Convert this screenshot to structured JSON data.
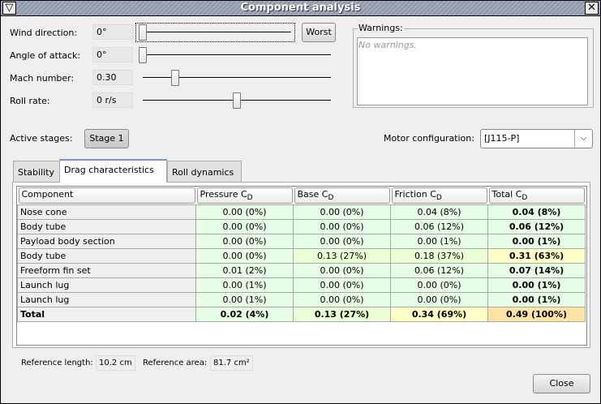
{
  "window": {
    "title": "Component analysis",
    "menu_icon": "triangle-down-icon",
    "close_icon": "close-x-icon"
  },
  "controls": [
    {
      "label": "Wind direction:",
      "value": "0°",
      "slider_fraction": 0.0
    },
    {
      "label": "Angle of attack:",
      "value": "0°",
      "slider_fraction": 0.0
    },
    {
      "label": "Mach number:",
      "value": "0.30",
      "slider_fraction": 0.1
    },
    {
      "label": "Roll rate:",
      "value": "0 r/s",
      "slider_fraction": 0.5
    }
  ],
  "worst_button": "Worst",
  "warnings": {
    "title": "Warnings:",
    "text": "No warnings."
  },
  "stages": {
    "label": "Active stages:",
    "button": "Stage 1"
  },
  "motor": {
    "label": "Motor configuration:",
    "value": "[J115-P]"
  },
  "tabs": [
    {
      "label": "Stability"
    },
    {
      "label": "Drag characteristics",
      "active": true
    },
    {
      "label": "Roll dynamics"
    }
  ],
  "table": {
    "headers": [
      {
        "main": "Component",
        "sub": ""
      },
      {
        "main": "Pressure C",
        "sub": "D"
      },
      {
        "main": "Base C",
        "sub": "D"
      },
      {
        "main": "Friction C",
        "sub": "D"
      },
      {
        "main": "Total C",
        "sub": "D"
      }
    ],
    "rows": [
      [
        "Nose cone",
        "0.00 (0%)",
        "0.00 (0%)",
        "0.04 (8%)",
        "0.04 (8%)"
      ],
      [
        "Body tube",
        "0.00 (0%)",
        "0.00 (0%)",
        "0.06 (12%)",
        "0.06 (12%)"
      ],
      [
        "Payload body section",
        "0.00 (0%)",
        "0.00 (0%)",
        "0.00 (1%)",
        "0.00 (1%)"
      ],
      [
        "Body tube",
        "0.00 (0%)",
        "0.13 (27%)",
        "0.18 (37%)",
        "0.31 (63%)"
      ],
      [
        "Freeform fin set",
        "0.01 (2%)",
        "0.00 (0%)",
        "0.06 (12%)",
        "0.07 (14%)"
      ],
      [
        "Launch lug",
        "0.00 (1%)",
        "0.00 (0%)",
        "0.00 (0%)",
        "0.00 (1%)"
      ],
      [
        "Launch lug",
        "0.00 (1%)",
        "0.00 (0%)",
        "0.00 (0%)",
        "0.00 (1%)"
      ],
      [
        "Total",
        "0.02 (4%)",
        "0.13 (27%)",
        "0.34 (69%)",
        "0.49 (100%)"
      ]
    ],
    "cell_colors": {
      "low": "#e6ffe6",
      "mid": "#ebffd6",
      "high": "#ffffc8",
      "max": "#ffe2a6"
    }
  },
  "reference": {
    "length_label": "Reference length:",
    "length": "10.2 cm",
    "area_label": "Reference area:",
    "area": "81.7 cm²"
  },
  "close_button": "Close"
}
